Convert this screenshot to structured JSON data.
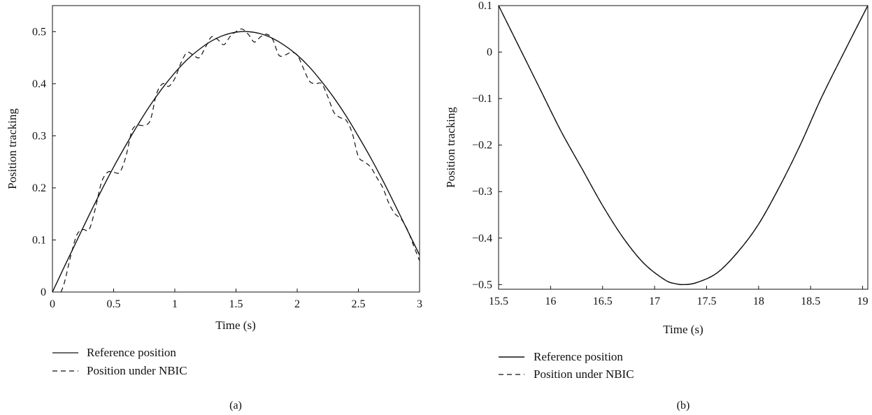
{
  "chart_data": [
    {
      "type": "line",
      "panel_label": "(a)",
      "xlabel": "Time (s)",
      "ylabel": "Position tracking",
      "xlim": [
        0,
        3
      ],
      "ylim": [
        0,
        0.55
      ],
      "x_ticks": [
        0,
        0.5,
        1,
        1.5,
        2,
        2.5,
        3
      ],
      "x_tick_labels": [
        "0",
        "0.5",
        "1",
        "1.5",
        "2",
        "2.5",
        "3"
      ],
      "y_ticks": [
        0,
        0.1,
        0.2,
        0.3,
        0.4,
        0.5
      ],
      "y_tick_labels": [
        "0",
        "0.1",
        "0.2",
        "0.3",
        "0.4",
        "0.5"
      ],
      "grid": false,
      "legend_position": "below",
      "series": [
        {
          "name": "Reference position",
          "style": "solid",
          "x": [
            0,
            0.1,
            0.2,
            0.3,
            0.4,
            0.5,
            0.6,
            0.7,
            0.8,
            0.9,
            1.0,
            1.1,
            1.2,
            1.3,
            1.4,
            1.5,
            1.6,
            1.7,
            1.8,
            1.9,
            2.0,
            2.1,
            2.2,
            2.3,
            2.4,
            2.5,
            2.6,
            2.7,
            2.8,
            2.9,
            3.0
          ],
          "y": [
            0,
            0.05,
            0.099,
            0.148,
            0.195,
            0.24,
            0.282,
            0.322,
            0.359,
            0.392,
            0.421,
            0.446,
            0.466,
            0.482,
            0.493,
            0.499,
            0.5,
            0.496,
            0.487,
            0.473,
            0.455,
            0.432,
            0.404,
            0.373,
            0.338,
            0.299,
            0.258,
            0.214,
            0.167,
            0.119,
            0.071
          ]
        },
        {
          "name": "Position under NBIC",
          "style": "dashed",
          "x": [
            0.07,
            0.1,
            0.15,
            0.2,
            0.25,
            0.3,
            0.35,
            0.4,
            0.45,
            0.5,
            0.55,
            0.6,
            0.65,
            0.7,
            0.75,
            0.8,
            0.85,
            0.9,
            0.95,
            1.0,
            1.05,
            1.1,
            1.15,
            1.2,
            1.25,
            1.3,
            1.35,
            1.4,
            1.45,
            1.5,
            1.55,
            1.6,
            1.65,
            1.7,
            1.75,
            1.8,
            1.85,
            1.9,
            1.95,
            2.0,
            2.05,
            2.1,
            2.15,
            2.2,
            2.25,
            2.3,
            2.35,
            2.4,
            2.45,
            2.5,
            2.55,
            2.6,
            2.65,
            2.7,
            2.75,
            2.8,
            2.85,
            2.9,
            2.95,
            3.0
          ],
          "y": [
            0,
            0.02,
            0.07,
            0.11,
            0.12,
            0.12,
            0.16,
            0.21,
            0.23,
            0.23,
            0.23,
            0.26,
            0.31,
            0.32,
            0.32,
            0.33,
            0.38,
            0.4,
            0.395,
            0.41,
            0.44,
            0.46,
            0.455,
            0.45,
            0.47,
            0.49,
            0.485,
            0.475,
            0.49,
            0.5,
            0.505,
            0.495,
            0.48,
            0.49,
            0.495,
            0.485,
            0.455,
            0.455,
            0.46,
            0.455,
            0.43,
            0.405,
            0.4,
            0.4,
            0.375,
            0.345,
            0.335,
            0.33,
            0.305,
            0.26,
            0.25,
            0.24,
            0.22,
            0.2,
            0.17,
            0.15,
            0.14,
            0.12,
            0.09,
            0.06
          ]
        }
      ]
    },
    {
      "type": "line",
      "panel_label": "(b)",
      "xlabel": "Time (s)",
      "ylabel": "Position tracking",
      "xlim": [
        15.5,
        19.05
      ],
      "ylim": [
        -0.51,
        0.1
      ],
      "x_ticks": [
        15.5,
        16,
        16.5,
        17,
        17.5,
        18,
        18.5,
        19
      ],
      "x_tick_labels": [
        "15.5",
        "16",
        "16.5",
        "17",
        "17.5",
        "18",
        "18.5",
        "19"
      ],
      "y_ticks": [
        0.1,
        0,
        -0.1,
        -0.2,
        -0.3,
        -0.4,
        -0.5
      ],
      "y_tick_labels": [
        "0.1",
        "0",
        "−0.1",
        "−0.2",
        "−0.3",
        "−0.4",
        "−0.5"
      ],
      "grid": false,
      "legend_position": "below",
      "series": [
        {
          "name": "Reference position",
          "style": "solid",
          "x": [
            15.5,
            15.7,
            15.9,
            16.1,
            16.3,
            16.5,
            16.7,
            16.9,
            17.1,
            17.2,
            17.28,
            17.4,
            17.6,
            17.8,
            18.0,
            18.2,
            18.4,
            18.6,
            18.8,
            19.05
          ],
          "y": [
            0.1,
            0.01,
            -0.08,
            -0.17,
            -0.25,
            -0.33,
            -0.4,
            -0.455,
            -0.49,
            -0.498,
            -0.5,
            -0.496,
            -0.475,
            -0.43,
            -0.37,
            -0.29,
            -0.2,
            -0.1,
            -0.01,
            0.1
          ]
        },
        {
          "name": "Position under NBIC",
          "style": "dashed",
          "x": [
            15.5,
            15.7,
            15.9,
            16.1,
            16.3,
            16.5,
            16.7,
            16.9,
            17.1,
            17.2,
            17.28,
            17.4,
            17.6,
            17.8,
            18.0,
            18.2,
            18.4,
            18.6,
            18.8,
            19.05
          ],
          "y": [
            0.1,
            0.01,
            -0.08,
            -0.17,
            -0.25,
            -0.33,
            -0.4,
            -0.455,
            -0.49,
            -0.498,
            -0.5,
            -0.496,
            -0.475,
            -0.43,
            -0.37,
            -0.29,
            -0.2,
            -0.1,
            -0.01,
            0.1
          ]
        }
      ]
    }
  ]
}
